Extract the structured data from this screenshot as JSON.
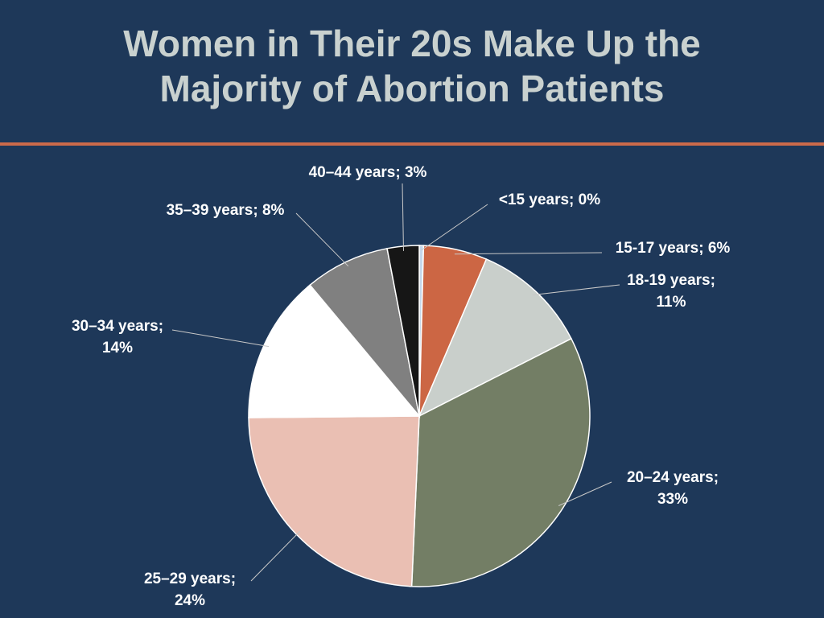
{
  "title_line1": "Women in Their 20s Make Up the",
  "title_line2": "Majority of Abortion Patients",
  "colors": {
    "background": "#1e3859",
    "title": "#c9d1cf",
    "rule": "#cc6a4a",
    "leader": "#c8c8c8"
  },
  "chart_data": {
    "type": "pie",
    "slices": [
      {
        "category": "<15 years",
        "value": 0.4,
        "label_lines": [
          "<15 years; 0%"
        ],
        "color": "#c5d8ea"
      },
      {
        "category": "15-17 years",
        "value": 6,
        "label_lines": [
          "15-17 years; 6%"
        ],
        "color": "#cc6644"
      },
      {
        "category": "18-19 years",
        "value": 11,
        "label_lines": [
          "18-19 years;",
          "11%"
        ],
        "color": "#c9cfcb"
      },
      {
        "category": "20–24 years",
        "value": 33,
        "label_lines": [
          "20–24 years;",
          "33%"
        ],
        "color": "#737e65"
      },
      {
        "category": "25–29 years",
        "value": 24,
        "label_lines": [
          "25–29 years;",
          "24%"
        ],
        "color": "#eabfb3"
      },
      {
        "category": "30–34 years",
        "value": 14,
        "label_lines": [
          "30–34 years;",
          "14%"
        ],
        "color": "#ffffff"
      },
      {
        "category": "35–39 years",
        "value": 8,
        "label_lines": [
          "35–39 years; 8%"
        ],
        "color": "#808080"
      },
      {
        "category": "40–44 years",
        "value": 3,
        "label_lines": [
          "40–44 years; 3%"
        ],
        "color": "#161616"
      }
    ],
    "start_angle_deg": 0,
    "direction": "clockwise",
    "data_labels": "outside-with-leader-lines"
  }
}
